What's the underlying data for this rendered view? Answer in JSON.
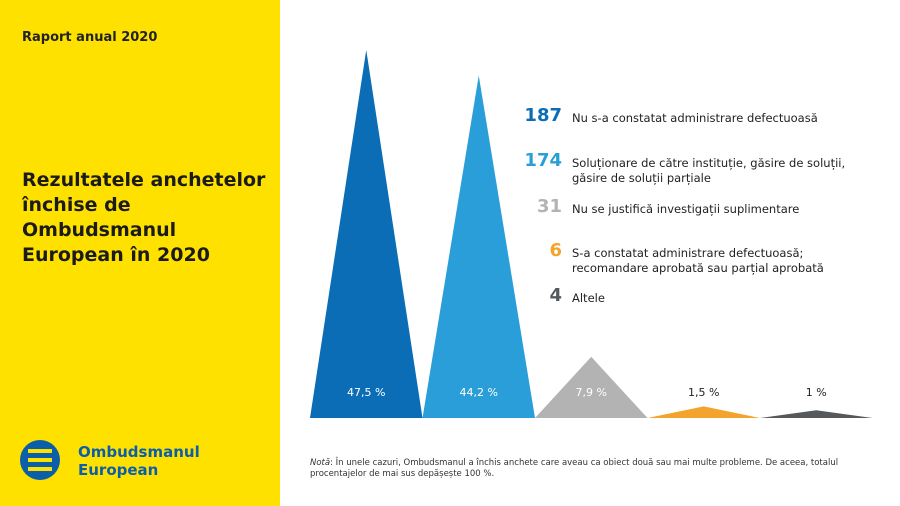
{
  "header": {
    "report": "Raport anual 2020",
    "title": "Rezultatele anchetelor închise de Ombudsmanul European în 2020"
  },
  "logo": {
    "name": "Ombudsmanul European"
  },
  "note": {
    "label": "Notă",
    "text": ": În unele cazuri, Ombudsmanul a închis anchete care aveau ca obiect două sau mai multe probleme. De aceea, totalul procentajelor de mai sus depășește 100 %."
  },
  "chart_data": {
    "type": "triangle",
    "categories": [
      "Nu s-a constatat administrare defectuoasă",
      "Soluționare de către instituție, găsire de soluții, găsire de soluții parțiale",
      "Nu se justifică investigații suplimentare",
      "S-a constatat administrare defectuoasă; recomandare aprobată sau parțial aprobată",
      "Altele"
    ],
    "values": [
      47.5,
      44.2,
      7.9,
      1.5,
      1
    ],
    "value_labels": [
      "47,5 %",
      "44,2 %",
      "7,9 %",
      "1,5 %",
      "1 %"
    ],
    "counts": [
      187,
      174,
      31,
      6,
      4
    ],
    "colors": [
      "#0a6db6",
      "#2a9ed8",
      "#b3b3b3",
      "#f3a42d",
      "#55595c"
    ]
  }
}
